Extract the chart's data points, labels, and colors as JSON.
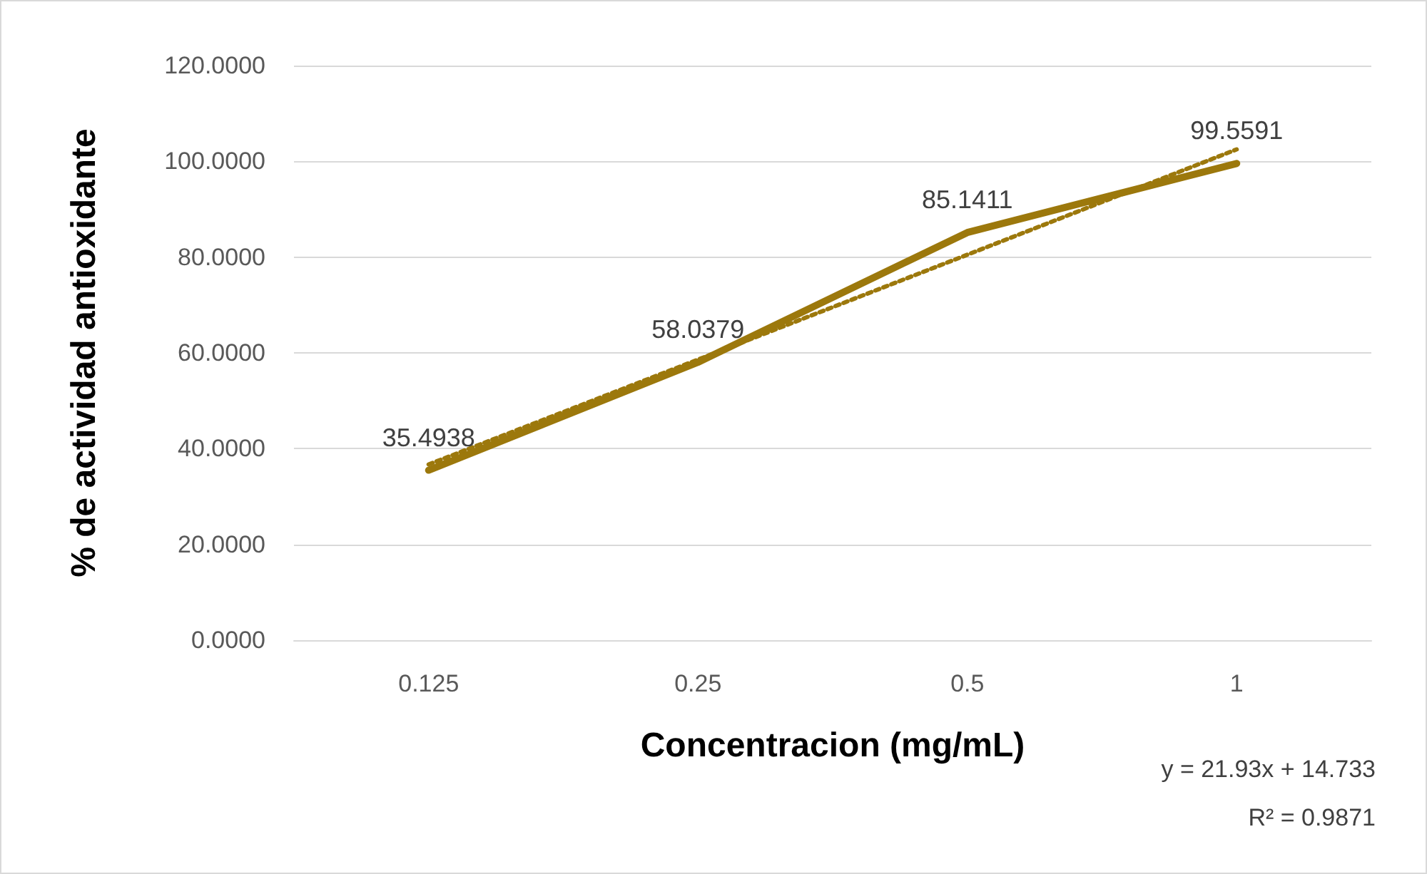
{
  "chart_data": {
    "type": "line",
    "xlabel": "Concentracion (mg/mL)",
    "ylabel": "% de actividad antioxidante",
    "categories": [
      "0.125",
      "0.25",
      "0.5",
      "1"
    ],
    "series": [
      {
        "color": "#9c780c",
        "values": [
          35.4938,
          58.0379,
          85.1411,
          99.5591
        ],
        "value_labels": [
          "35.4938",
          "58.0379",
          "85.1411",
          "99.5591"
        ],
        "line_style": "solid"
      },
      {
        "color": "#9c780c",
        "values": [
          36.7,
          58.6,
          80.5,
          102.5
        ],
        "line_style": "dotted"
      }
    ],
    "ylim": [
      0,
      120
    ],
    "yticks": [
      {
        "value": 0,
        "label": "0.0000"
      },
      {
        "value": 20,
        "label": "20.0000"
      },
      {
        "value": 40,
        "label": "40.0000"
      },
      {
        "value": 60,
        "label": "60.0000"
      },
      {
        "value": 80,
        "label": "80.0000"
      },
      {
        "value": 100,
        "label": "100.0000"
      },
      {
        "value": 120,
        "label": "120.0000"
      }
    ],
    "grid": "y",
    "marker": "none",
    "annotations": [
      "y = 21.93x + 14.733",
      "R² = 0.9871"
    ]
  }
}
